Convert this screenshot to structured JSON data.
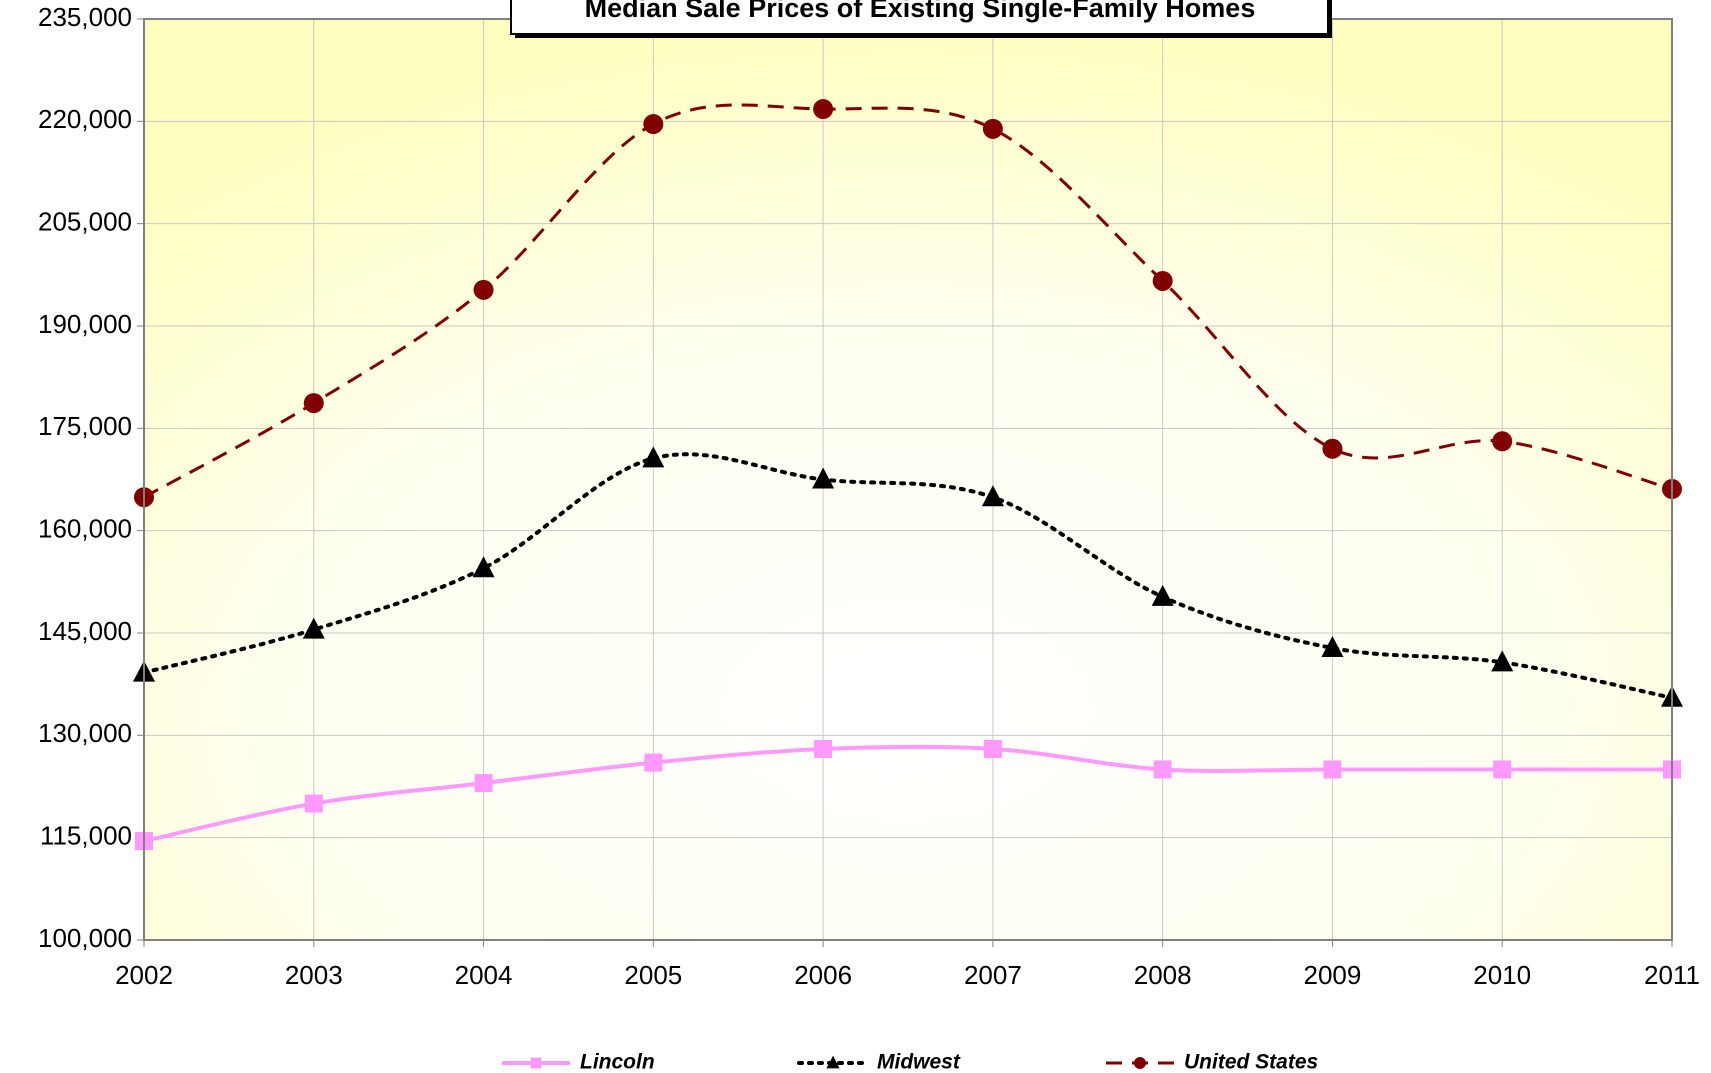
{
  "chart_data": {
    "type": "line",
    "title": "Median Sale Prices of Existing Single-Family Homes",
    "categories": [
      "2002",
      "2003",
      "2004",
      "2005",
      "2006",
      "2007",
      "2008",
      "2009",
      "2010",
      "2011"
    ],
    "series": [
      {
        "name": "Lincoln",
        "color": "#ff99ff",
        "marker": "square",
        "dash": "solid",
        "values": [
          114500,
          120000,
          123000,
          126000,
          128000,
          128000,
          125000,
          125000,
          125000,
          125000
        ]
      },
      {
        "name": "Midwest",
        "color": "#000000",
        "marker": "triangle",
        "dash": "dotted",
        "values": [
          139200,
          145500,
          154500,
          170600,
          167500,
          164900,
          150300,
          142800,
          140700,
          135500
        ]
      },
      {
        "name": "United States",
        "color": "#800000",
        "marker": "circle",
        "dash": "dashed",
        "values": [
          164900,
          178700,
          195300,
          219600,
          221800,
          218900,
          196600,
          172000,
          173100,
          166100
        ]
      }
    ],
    "ylim": [
      100000,
      235000
    ],
    "yticks": [
      {
        "value": 100000,
        "label": "100,000"
      },
      {
        "value": 115000,
        "label": "115,000"
      },
      {
        "value": 130000,
        "label": "130,000"
      },
      {
        "value": 145000,
        "label": "145,000"
      },
      {
        "value": 160000,
        "label": "160,000"
      },
      {
        "value": 175000,
        "label": "175,000"
      },
      {
        "value": 190000,
        "label": "190,000"
      },
      {
        "value": 205000,
        "label": "205,000"
      },
      {
        "value": 220000,
        "label": "220,000"
      },
      {
        "value": 235000,
        "label": "235,000"
      }
    ],
    "grid": true,
    "smooth": true,
    "legend": "bottom"
  }
}
